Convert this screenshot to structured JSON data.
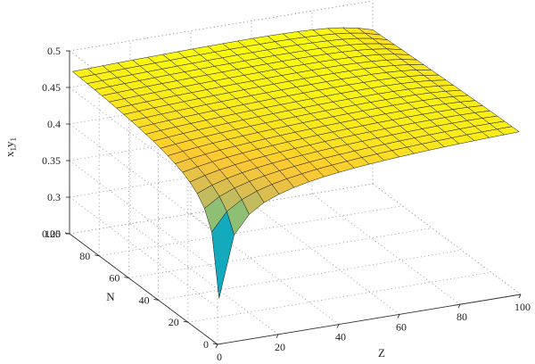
{
  "chart_data": {
    "type": "surface",
    "title": "",
    "xlabel": "Z",
    "ylabel": "N",
    "zlabel": "x1y1",
    "zlabel_main": "x",
    "zlabel_sub1": "1",
    "zlabel_mid": "y",
    "zlabel_sub2": "1",
    "xlim": [
      0,
      100
    ],
    "ylim": [
      0,
      100
    ],
    "zlim": [
      0.25,
      0.5
    ],
    "x_ticks": [
      "0",
      "20",
      "40",
      "60",
      "80",
      "100"
    ],
    "y_ticks": [
      "0",
      "20",
      "40",
      "60",
      "80",
      "100"
    ],
    "z_ticks": [
      "0.25",
      "0.3",
      "0.35",
      "0.4",
      "0.45",
      "0.5"
    ],
    "grid": true,
    "colormap": "parula",
    "colormap_stops": [
      "#352a87",
      "#0f5cdd",
      "#1481d6",
      "#06a4ca",
      "#2eb7a4",
      "#87bf77",
      "#d1bb59",
      "#fec832",
      "#f9fb0e"
    ],
    "surface_grid_count": 21,
    "surface_domain": {
      "x": [
        1,
        100
      ],
      "y": [
        1,
        100
      ]
    },
    "surface_samples": [
      {
        "x": 1,
        "y": 1,
        "z": 0.2
      },
      {
        "x": 1,
        "y": 100,
        "z": 0.3
      },
      {
        "x": 100,
        "y": 1,
        "z": 0.37
      },
      {
        "x": 30,
        "y": 30,
        "z": 0.46
      },
      {
        "x": 50,
        "y": 50,
        "z": 0.48
      },
      {
        "x": 100,
        "y": 100,
        "z": 0.49
      }
    ]
  }
}
